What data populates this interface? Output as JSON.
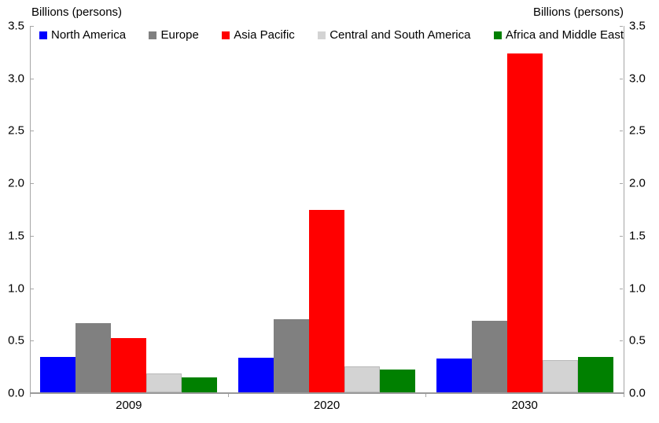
{
  "chart_data": {
    "type": "bar",
    "axis_title_left": "Billions (persons)",
    "axis_title_right": "Billions (persons)",
    "categories": [
      "2009",
      "2020",
      "2030"
    ],
    "series": [
      {
        "name": "North America",
        "color": "#0000ff",
        "values": [
          0.34,
          0.33,
          0.32
        ]
      },
      {
        "name": "Europe",
        "color": "#808080",
        "values": [
          0.66,
          0.7,
          0.68
        ]
      },
      {
        "name": "Asia Pacific",
        "color": "#ff0000",
        "values": [
          0.52,
          1.74,
          3.23
        ]
      },
      {
        "name": "Central and South America",
        "color": "#d3d3d3",
        "border": "#b9b9b9",
        "values": [
          0.18,
          0.25,
          0.31
        ]
      },
      {
        "name": "Africa and Middle East",
        "color": "#008000",
        "values": [
          0.14,
          0.22,
          0.34
        ]
      }
    ],
    "ylim": [
      0,
      3.5
    ],
    "ytick_step": 0.5,
    "yticks": [
      "0.0",
      "0.5",
      "1.0",
      "1.5",
      "2.0",
      "2.5",
      "3.0",
      "3.5"
    ],
    "legend_position": "top-inside",
    "grid": false,
    "colors": {
      "axis": "#a6a6a6",
      "text": "#000000",
      "background": "#ffffff"
    }
  }
}
